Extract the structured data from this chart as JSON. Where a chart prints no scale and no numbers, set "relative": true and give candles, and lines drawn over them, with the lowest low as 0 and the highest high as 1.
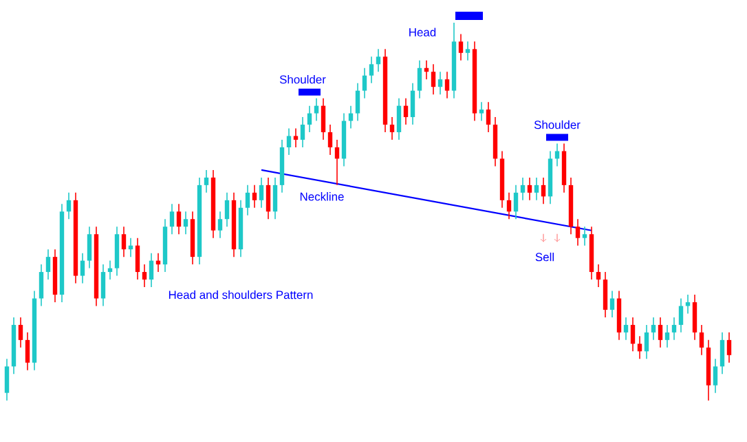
{
  "chart_data": {
    "type": "candlestick",
    "relative": true,
    "categories": [
      null,
      null,
      null,
      null,
      null,
      null,
      null,
      null,
      null,
      null,
      null,
      null,
      null,
      null,
      null,
      null,
      null,
      null,
      null,
      null,
      null,
      null,
      null,
      null,
      null,
      null,
      null,
      null,
      null,
      null,
      null,
      null,
      null,
      null,
      null,
      null,
      null,
      null,
      null,
      null,
      null,
      null,
      null,
      null,
      null,
      null,
      null,
      null,
      null,
      null,
      null,
      null,
      null,
      null,
      null,
      null,
      null,
      null,
      null,
      null,
      null,
      null,
      null,
      null,
      null,
      null,
      null,
      null,
      null,
      null,
      null,
      null,
      null,
      null,
      null,
      null,
      null,
      null,
      null,
      null,
      null,
      null,
      null,
      null,
      null,
      null,
      null,
      null,
      null,
      null,
      null,
      null,
      null,
      null,
      null,
      null,
      null,
      null,
      null,
      null,
      null,
      null,
      null,
      null,
      null,
      null
    ],
    "ohlc": [
      [
        0.02,
        0.11,
        0.0,
        0.09
      ],
      [
        0.09,
        0.22,
        0.07,
        0.2
      ],
      [
        0.2,
        0.22,
        0.14,
        0.16
      ],
      [
        0.16,
        0.18,
        0.08,
        0.1
      ],
      [
        0.1,
        0.29,
        0.08,
        0.27
      ],
      [
        0.27,
        0.36,
        0.25,
        0.34
      ],
      [
        0.34,
        0.4,
        0.32,
        0.38
      ],
      [
        0.38,
        0.4,
        0.26,
        0.28
      ],
      [
        0.28,
        0.52,
        0.26,
        0.5
      ],
      [
        0.5,
        0.55,
        0.48,
        0.53
      ],
      [
        0.53,
        0.55,
        0.31,
        0.33
      ],
      [
        0.33,
        0.39,
        0.31,
        0.37
      ],
      [
        0.37,
        0.46,
        0.35,
        0.44
      ],
      [
        0.44,
        0.46,
        0.25,
        0.27
      ],
      [
        0.27,
        0.36,
        0.25,
        0.34
      ],
      [
        0.34,
        0.37,
        0.32,
        0.35
      ],
      [
        0.35,
        0.46,
        0.33,
        0.44
      ],
      [
        0.44,
        0.46,
        0.38,
        0.4
      ],
      [
        0.4,
        0.43,
        0.38,
        0.41
      ],
      [
        0.41,
        0.43,
        0.32,
        0.34
      ],
      [
        0.34,
        0.36,
        0.3,
        0.32
      ],
      [
        0.32,
        0.39,
        0.3,
        0.37
      ],
      [
        0.37,
        0.39,
        0.34,
        0.36
      ],
      [
        0.36,
        0.48,
        0.34,
        0.46
      ],
      [
        0.46,
        0.52,
        0.44,
        0.5
      ],
      [
        0.5,
        0.52,
        0.44,
        0.46
      ],
      [
        0.46,
        0.5,
        0.44,
        0.48
      ],
      [
        0.48,
        0.5,
        0.36,
        0.38
      ],
      [
        0.38,
        0.59,
        0.36,
        0.57
      ],
      [
        0.57,
        0.61,
        0.55,
        0.59
      ],
      [
        0.59,
        0.61,
        0.43,
        0.45
      ],
      [
        0.45,
        0.5,
        0.43,
        0.48
      ],
      [
        0.48,
        0.55,
        0.46,
        0.53
      ],
      [
        0.53,
        0.55,
        0.38,
        0.4
      ],
      [
        0.4,
        0.53,
        0.38,
        0.51
      ],
      [
        0.51,
        0.57,
        0.49,
        0.55
      ],
      [
        0.55,
        0.57,
        0.51,
        0.53
      ],
      [
        0.53,
        0.59,
        0.51,
        0.57
      ],
      [
        0.57,
        0.59,
        0.48,
        0.5
      ],
      [
        0.5,
        0.59,
        0.48,
        0.57
      ],
      [
        0.57,
        0.69,
        0.55,
        0.67
      ],
      [
        0.67,
        0.72,
        0.65,
        0.7
      ],
      [
        0.7,
        0.72,
        0.67,
        0.69
      ],
      [
        0.69,
        0.75,
        0.67,
        0.73
      ],
      [
        0.73,
        0.78,
        0.71,
        0.76
      ],
      [
        0.76,
        0.8,
        0.74,
        0.78
      ],
      [
        0.78,
        0.8,
        0.69,
        0.71
      ],
      [
        0.71,
        0.73,
        0.65,
        0.67
      ],
      [
        0.67,
        0.69,
        0.57,
        0.64
      ],
      [
        0.64,
        0.76,
        0.62,
        0.74
      ],
      [
        0.74,
        0.78,
        0.72,
        0.76
      ],
      [
        0.76,
        0.84,
        0.74,
        0.82
      ],
      [
        0.82,
        0.88,
        0.8,
        0.86
      ],
      [
        0.86,
        0.91,
        0.84,
        0.89
      ],
      [
        0.89,
        0.93,
        0.87,
        0.91
      ],
      [
        0.91,
        0.93,
        0.71,
        0.73
      ],
      [
        0.73,
        0.75,
        0.69,
        0.71
      ],
      [
        0.71,
        0.8,
        0.69,
        0.78
      ],
      [
        0.78,
        0.8,
        0.73,
        0.75
      ],
      [
        0.75,
        0.84,
        0.73,
        0.82
      ],
      [
        0.82,
        0.9,
        0.8,
        0.88
      ],
      [
        0.88,
        0.9,
        0.85,
        0.87
      ],
      [
        0.87,
        0.89,
        0.81,
        0.83
      ],
      [
        0.83,
        0.87,
        0.81,
        0.85
      ],
      [
        0.85,
        0.87,
        0.8,
        0.82
      ],
      [
        0.82,
        1.0,
        0.8,
        0.95
      ],
      [
        0.95,
        0.97,
        0.9,
        0.92
      ],
      [
        0.92,
        0.95,
        0.9,
        0.93
      ],
      [
        0.93,
        0.95,
        0.74,
        0.76
      ],
      [
        0.76,
        0.79,
        0.74,
        0.77
      ],
      [
        0.77,
        0.79,
        0.71,
        0.73
      ],
      [
        0.73,
        0.75,
        0.62,
        0.64
      ],
      [
        0.64,
        0.66,
        0.51,
        0.53
      ],
      [
        0.53,
        0.55,
        0.48,
        0.5
      ],
      [
        0.5,
        0.57,
        0.48,
        0.55
      ],
      [
        0.55,
        0.59,
        0.53,
        0.57
      ],
      [
        0.57,
        0.59,
        0.53,
        0.55
      ],
      [
        0.55,
        0.59,
        0.53,
        0.57
      ],
      [
        0.57,
        0.59,
        0.52,
        0.54
      ],
      [
        0.54,
        0.66,
        0.52,
        0.64
      ],
      [
        0.64,
        0.68,
        0.62,
        0.66
      ],
      [
        0.66,
        0.68,
        0.55,
        0.57
      ],
      [
        0.57,
        0.59,
        0.44,
        0.46
      ],
      [
        0.46,
        0.48,
        0.41,
        0.43
      ],
      [
        0.43,
        0.46,
        0.41,
        0.44
      ],
      [
        0.44,
        0.46,
        0.32,
        0.34
      ],
      [
        0.34,
        0.36,
        0.3,
        0.32
      ],
      [
        0.32,
        0.34,
        0.22,
        0.24
      ],
      [
        0.24,
        0.29,
        0.22,
        0.27
      ],
      [
        0.27,
        0.29,
        0.16,
        0.18
      ],
      [
        0.18,
        0.22,
        0.16,
        0.2
      ],
      [
        0.2,
        0.22,
        0.13,
        0.15
      ],
      [
        0.15,
        0.17,
        0.11,
        0.13
      ],
      [
        0.13,
        0.2,
        0.11,
        0.18
      ],
      [
        0.18,
        0.22,
        0.16,
        0.2
      ],
      [
        0.2,
        0.22,
        0.14,
        0.16
      ],
      [
        0.16,
        0.2,
        0.14,
        0.18
      ],
      [
        0.18,
        0.22,
        0.16,
        0.2
      ],
      [
        0.2,
        0.27,
        0.18,
        0.25
      ],
      [
        0.25,
        0.28,
        0.23,
        0.26
      ],
      [
        0.26,
        0.28,
        0.16,
        0.18
      ],
      [
        0.18,
        0.2,
        0.12,
        0.14
      ],
      [
        0.14,
        0.16,
        0.0,
        0.04
      ],
      [
        0.04,
        0.11,
        0.02,
        0.09
      ],
      [
        0.09,
        0.18,
        0.07,
        0.16
      ],
      [
        0.16,
        0.18,
        0.1,
        0.12
      ]
    ],
    "colors": [
      "#1ec8c8",
      "#1ec8c8",
      "#ff0000",
      "#ff0000",
      "#1ec8c8",
      "#1ec8c8",
      "#1ec8c8",
      "#ff0000",
      "#1ec8c8",
      "#1ec8c8",
      "#ff0000",
      "#1ec8c8",
      "#1ec8c8",
      "#ff0000",
      "#1ec8c8",
      "#1ec8c8",
      "#1ec8c8",
      "#ff0000",
      "#1ec8c8",
      "#ff0000",
      "#ff0000",
      "#1ec8c8",
      "#ff0000",
      "#1ec8c8",
      "#1ec8c8",
      "#ff0000",
      "#1ec8c8",
      "#ff0000",
      "#1ec8c8",
      "#1ec8c8",
      "#ff0000",
      "#1ec8c8",
      "#1ec8c8",
      "#ff0000",
      "#1ec8c8",
      "#1ec8c8",
      "#ff0000",
      "#1ec8c8",
      "#ff0000",
      "#1ec8c8",
      "#1ec8c8",
      "#1ec8c8",
      "#ff0000",
      "#1ec8c8",
      "#1ec8c8",
      "#1ec8c8",
      "#ff0000",
      "#ff0000",
      "#ff0000",
      "#1ec8c8",
      "#1ec8c8",
      "#1ec8c8",
      "#1ec8c8",
      "#1ec8c8",
      "#1ec8c8",
      "#ff0000",
      "#ff0000",
      "#1ec8c8",
      "#ff0000",
      "#1ec8c8",
      "#1ec8c8",
      "#ff0000",
      "#ff0000",
      "#1ec8c8",
      "#ff0000",
      "#1ec8c8",
      "#ff0000",
      "#1ec8c8",
      "#ff0000",
      "#1ec8c8",
      "#ff0000",
      "#ff0000",
      "#ff0000",
      "#ff0000",
      "#1ec8c8",
      "#1ec8c8",
      "#ff0000",
      "#1ec8c8",
      "#ff0000",
      "#1ec8c8",
      "#1ec8c8",
      "#ff0000",
      "#ff0000",
      "#ff0000",
      "#1ec8c8",
      "#ff0000",
      "#ff0000",
      "#ff0000",
      "#1ec8c8",
      "#ff0000",
      "#1ec8c8",
      "#ff0000",
      "#ff0000",
      "#1ec8c8",
      "#1ec8c8",
      "#ff0000",
      "#1ec8c8",
      "#1ec8c8",
      "#1ec8c8",
      "#1ec8c8",
      "#ff0000",
      "#ff0000",
      "#ff0000",
      "#1ec8c8",
      "#1ec8c8",
      "#ff0000"
    ],
    "series": [
      {
        "type": "line",
        "color": "#0000ff",
        "values": [
          null,
          null,
          null,
          null,
          null,
          null,
          null,
          null,
          null,
          null,
          null,
          null,
          null,
          null,
          null,
          null,
          null,
          null,
          null,
          null,
          null,
          null,
          null,
          null,
          null,
          null,
          null,
          null,
          null,
          null,
          null,
          null,
          null,
          null,
          null,
          null,
          null,
          0.61,
          null,
          null,
          null,
          null,
          null,
          null,
          null,
          null,
          null,
          null,
          null,
          null,
          null,
          null,
          null,
          null,
          null,
          null,
          null,
          null,
          null,
          null,
          null,
          null,
          null,
          null,
          null,
          null,
          null,
          null,
          null,
          null,
          null,
          null,
          null,
          null,
          null,
          null,
          null,
          null,
          null,
          null,
          null,
          null,
          null,
          null,
          null,
          0.45,
          null,
          null,
          null,
          null,
          null,
          null,
          null,
          null,
          null,
          null,
          null,
          null,
          null,
          null,
          null,
          null,
          null,
          null,
          null,
          null
        ]
      }
    ],
    "annotations": [
      "Head",
      "Shoulder",
      "Shoulder",
      "Neckline",
      "Sell",
      "Head and shoulders Pattern"
    ]
  }
}
